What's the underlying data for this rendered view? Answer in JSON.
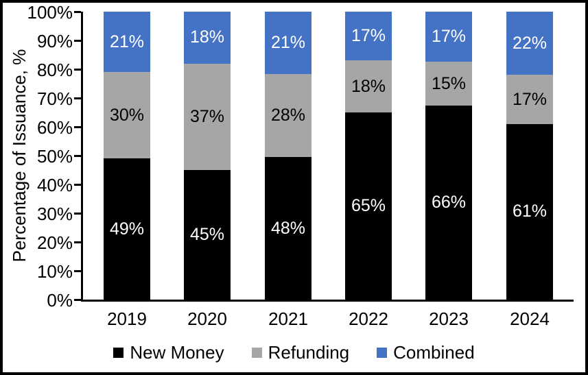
{
  "figure": {
    "background_color": "#ffffff",
    "border_color": "#000000"
  },
  "chart_data": {
    "type": "bar",
    "stacked": true,
    "title": "",
    "xlabel": "",
    "ylabel": "Percentage of Issuance, %",
    "categories": [
      "2019",
      "2020",
      "2021",
      "2022",
      "2023",
      "2024"
    ],
    "series": [
      {
        "name": "New Money",
        "color": "#000000",
        "label_color": "#ffffff",
        "values": [
          49,
          45,
          48,
          65,
          66,
          61
        ]
      },
      {
        "name": "Refunding",
        "color": "#a6a6a6",
        "label_color": "#000000",
        "values": [
          30,
          37,
          28,
          18,
          15,
          17
        ]
      },
      {
        "name": "Combined",
        "color": "#4472c4",
        "label_color": "#ffffff",
        "values": [
          21,
          18,
          21,
          17,
          17,
          22
        ]
      }
    ],
    "value_suffix": "%",
    "yticks": [
      "0%",
      "10%",
      "20%",
      "30%",
      "40%",
      "50%",
      "60%",
      "70%",
      "80%",
      "90%",
      "100%"
    ],
    "ylim": [
      0,
      100
    ],
    "grid": false,
    "legend_position": "bottom",
    "data_labels_shown": true
  }
}
